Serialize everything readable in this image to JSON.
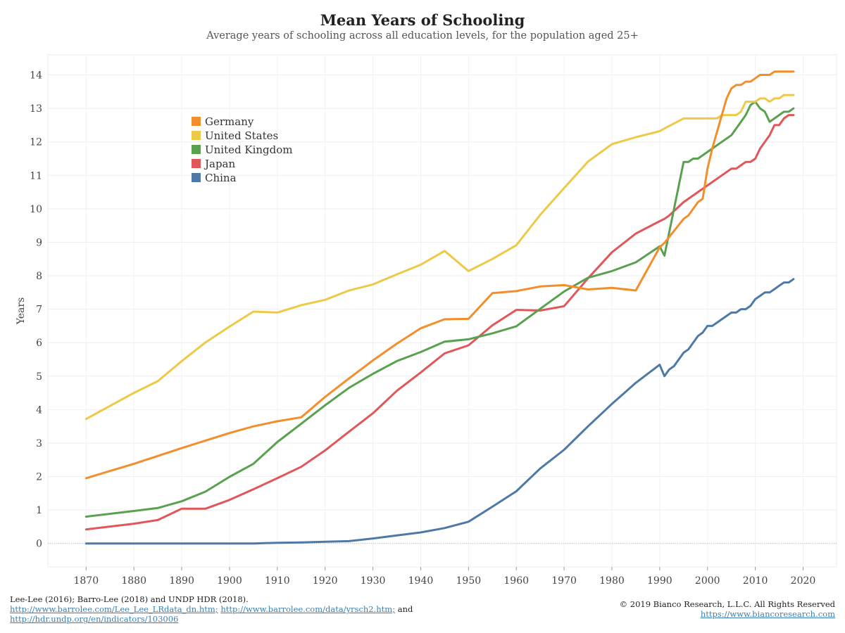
{
  "title": "Mean Years of Schooling",
  "subtitle": "Average years of schooling across all education levels, for the population aged 25+",
  "footer": {
    "source_line": "Lee-Lee (2016); Barro-Lee (2018) and UNDP HDR (2018).",
    "link1": "http://www.barrolee.com/Lee_Lee_LRdata_dn.htm;",
    "link2": "http://www.barrolee.com/data/yrsch2.htm;",
    "and_text": "and",
    "link3": "http://hdr.undp.org/en/indicators/103006",
    "copyright": "© 2019 Bianco Research, L.L.C. All Rights Reserved",
    "website": "https://www.biancoresearch.com"
  },
  "chart_data": {
    "type": "line",
    "title": "Mean Years of Schooling",
    "subtitle": "Average years of schooling across all education levels, for the population aged 25+",
    "xlabel": "",
    "ylabel": "Years",
    "xlim": [
      1862,
      2027
    ],
    "ylim": [
      -0.7,
      14.6
    ],
    "xticks": [
      1870,
      1880,
      1890,
      1900,
      1910,
      1920,
      1930,
      1940,
      1950,
      1960,
      1970,
      1980,
      1990,
      2000,
      2010,
      2020
    ],
    "yticks": [
      0,
      1,
      2,
      3,
      4,
      5,
      6,
      7,
      8,
      9,
      10,
      11,
      12,
      13,
      14
    ],
    "grid": true,
    "legend_position": "upper-left",
    "series": [
      {
        "name": "Germany",
        "color": "#f28e2b",
        "x": [
          1870,
          1880,
          1890,
          1900,
          1905,
          1910,
          1915,
          1920,
          1925,
          1930,
          1935,
          1940,
          1945,
          1950,
          1955,
          1960,
          1965,
          1970,
          1975,
          1980,
          1985,
          1990,
          1991,
          1995,
          1996,
          1997,
          1998,
          1999,
          2000,
          2001,
          2002,
          2003,
          2004,
          2005,
          2006,
          2007,
          2008,
          2009,
          2010,
          2011,
          2012,
          2013,
          2014,
          2015,
          2016,
          2017,
          2018
        ],
        "y": [
          1.95,
          2.38,
          2.85,
          3.3,
          3.5,
          3.65,
          3.77,
          4.38,
          4.93,
          5.47,
          5.97,
          6.43,
          6.7,
          6.71,
          7.48,
          7.54,
          7.68,
          7.72,
          7.59,
          7.64,
          7.56,
          8.85,
          8.98,
          9.7,
          9.8,
          10.0,
          10.2,
          10.3,
          11.2,
          11.8,
          12.3,
          12.8,
          13.3,
          13.6,
          13.7,
          13.7,
          13.8,
          13.8,
          13.9,
          14.0,
          14.0,
          14.0,
          14.1,
          14.1,
          14.1,
          14.1,
          14.1
        ]
      },
      {
        "name": "United States",
        "color": "#edc948",
        "x": [
          1870,
          1880,
          1885,
          1890,
          1895,
          1900,
          1905,
          1910,
          1915,
          1920,
          1925,
          1930,
          1935,
          1940,
          1945,
          1950,
          1955,
          1960,
          1965,
          1970,
          1975,
          1980,
          1985,
          1990,
          1991,
          1995,
          2000,
          2002,
          2003,
          2005,
          2006,
          2007,
          2008,
          2009,
          2010,
          2011,
          2012,
          2013,
          2014,
          2015,
          2016,
          2017,
          2018
        ],
        "y": [
          3.72,
          4.5,
          4.85,
          5.45,
          6.01,
          6.48,
          6.93,
          6.9,
          7.12,
          7.28,
          7.56,
          7.74,
          8.04,
          8.33,
          8.74,
          8.14,
          8.5,
          8.91,
          9.82,
          10.62,
          11.41,
          11.93,
          12.14,
          12.32,
          12.4,
          12.7,
          12.7,
          12.7,
          12.8,
          12.8,
          12.8,
          12.9,
          13.2,
          13.2,
          13.2,
          13.3,
          13.3,
          13.2,
          13.3,
          13.3,
          13.4,
          13.4,
          13.4
        ]
      },
      {
        "name": "United Kingdom",
        "color": "#59a14f",
        "x": [
          1870,
          1880,
          1885,
          1890,
          1895,
          1900,
          1905,
          1910,
          1915,
          1920,
          1925,
          1930,
          1935,
          1940,
          1945,
          1950,
          1955,
          1960,
          1965,
          1970,
          1975,
          1980,
          1985,
          1990,
          1991,
          1995,
          1996,
          1997,
          1998,
          2000,
          2005,
          2007,
          2008,
          2009,
          2010,
          2011,
          2012,
          2013,
          2014,
          2015,
          2016,
          2017,
          2018
        ],
        "y": [
          0.8,
          0.97,
          1.06,
          1.26,
          1.55,
          1.99,
          2.38,
          3.03,
          3.58,
          4.13,
          4.65,
          5.07,
          5.45,
          5.72,
          6.03,
          6.1,
          6.28,
          6.49,
          7.01,
          7.53,
          7.94,
          8.14,
          8.4,
          8.88,
          8.6,
          11.4,
          11.4,
          11.5,
          11.5,
          11.7,
          12.2,
          12.6,
          12.8,
          13.1,
          13.2,
          13.0,
          12.9,
          12.6,
          12.7,
          12.8,
          12.9,
          12.9,
          13.0
        ]
      },
      {
        "name": "Japan",
        "color": "#e15759",
        "x": [
          1870,
          1880,
          1885,
          1890,
          1895,
          1900,
          1905,
          1910,
          1915,
          1920,
          1925,
          1930,
          1935,
          1940,
          1945,
          1950,
          1955,
          1960,
          1965,
          1970,
          1975,
          1980,
          1985,
          1990,
          1991,
          1992,
          1995,
          2000,
          2005,
          2006,
          2007,
          2008,
          2009,
          2010,
          2011,
          2012,
          2013,
          2014,
          2015,
          2016,
          2017,
          2018
        ],
        "y": [
          0.42,
          0.59,
          0.7,
          1.04,
          1.04,
          1.3,
          1.62,
          1.95,
          2.29,
          2.78,
          3.34,
          3.89,
          4.56,
          5.11,
          5.68,
          5.92,
          6.52,
          6.98,
          6.96,
          7.09,
          7.92,
          8.7,
          9.26,
          9.63,
          9.7,
          9.8,
          10.2,
          10.7,
          11.2,
          11.2,
          11.3,
          11.4,
          11.4,
          11.5,
          11.8,
          12.0,
          12.2,
          12.5,
          12.5,
          12.7,
          12.8,
          12.8
        ]
      },
      {
        "name": "China",
        "color": "#4e79a7",
        "x": [
          1870,
          1880,
          1890,
          1900,
          1905,
          1910,
          1915,
          1920,
          1925,
          1930,
          1935,
          1940,
          1945,
          1950,
          1955,
          1960,
          1965,
          1970,
          1975,
          1980,
          1985,
          1990,
          1991,
          1992,
          1993,
          1995,
          1996,
          1998,
          1999,
          2000,
          2001,
          2003,
          2004,
          2005,
          2006,
          2007,
          2008,
          2009,
          2010,
          2011,
          2012,
          2013,
          2014,
          2015,
          2016,
          2017,
          2018
        ],
        "y": [
          0.0,
          0.0,
          0.0,
          0.0,
          0.0,
          0.02,
          0.03,
          0.05,
          0.07,
          0.15,
          0.24,
          0.33,
          0.46,
          0.65,
          1.1,
          1.56,
          2.24,
          2.8,
          3.5,
          4.17,
          4.8,
          5.34,
          5.0,
          5.2,
          5.3,
          5.7,
          5.8,
          6.2,
          6.3,
          6.5,
          6.5,
          6.7,
          6.8,
          6.9,
          6.9,
          7.0,
          7.0,
          7.1,
          7.3,
          7.4,
          7.5,
          7.5,
          7.6,
          7.7,
          7.8,
          7.8,
          7.9
        ]
      }
    ]
  }
}
